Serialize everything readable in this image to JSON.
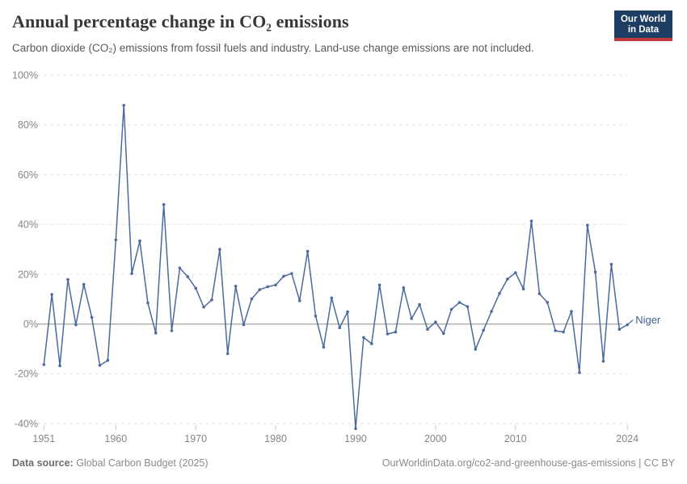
{
  "header": {
    "title": "Annual percentage change in CO₂ emissions",
    "subtitle": "Carbon dioxide (CO₂) emissions from fossil fuels and industry. Land-use change emissions are not included.",
    "logo": {
      "line1": "Our World",
      "line2": "in Data"
    }
  },
  "chart_data": {
    "type": "line",
    "entity": "Niger",
    "unit": "%",
    "points": [
      [
        1951,
        -16.3
      ],
      [
        1952,
        11.9
      ],
      [
        1953,
        -16.8
      ],
      [
        1954,
        17.9
      ],
      [
        1955,
        -0.3
      ],
      [
        1956,
        15.9
      ],
      [
        1957,
        2.7
      ],
      [
        1958,
        -16.6
      ],
      [
        1959,
        -14.6
      ],
      [
        1960,
        33.8
      ],
      [
        1961,
        87.9
      ],
      [
        1962,
        20.3
      ],
      [
        1963,
        33.4
      ],
      [
        1964,
        8.5
      ],
      [
        1965,
        -3.6
      ],
      [
        1966,
        48.0
      ],
      [
        1967,
        -2.7
      ],
      [
        1968,
        22.5
      ],
      [
        1969,
        19.0
      ],
      [
        1970,
        14.4
      ],
      [
        1971,
        6.8
      ],
      [
        1972,
        9.7
      ],
      [
        1973,
        30.0
      ],
      [
        1974,
        -11.9
      ],
      [
        1975,
        15.2
      ],
      [
        1976,
        -0.3
      ],
      [
        1977,
        10.1
      ],
      [
        1978,
        13.8
      ],
      [
        1979,
        15.0
      ],
      [
        1980,
        15.7
      ],
      [
        1981,
        19.2
      ],
      [
        1982,
        20.3
      ],
      [
        1983,
        9.4
      ],
      [
        1984,
        29.2
      ],
      [
        1985,
        3.2
      ],
      [
        1986,
        -9.3
      ],
      [
        1987,
        10.5
      ],
      [
        1988,
        -1.5
      ],
      [
        1989,
        4.9
      ],
      [
        1990,
        -42.0
      ],
      [
        1991,
        -5.4
      ],
      [
        1992,
        -7.9
      ],
      [
        1993,
        15.7
      ],
      [
        1994,
        -4.0
      ],
      [
        1995,
        -3.2
      ],
      [
        1996,
        14.6
      ],
      [
        1997,
        2.2
      ],
      [
        1998,
        7.8
      ],
      [
        1999,
        -2.1
      ],
      [
        2000,
        0.8
      ],
      [
        2001,
        -3.8
      ],
      [
        2002,
        5.9
      ],
      [
        2003,
        8.7
      ],
      [
        2004,
        7.0
      ],
      [
        2005,
        -10.1
      ],
      [
        2006,
        -2.5
      ],
      [
        2007,
        5.1
      ],
      [
        2008,
        12.3
      ],
      [
        2009,
        18.1
      ],
      [
        2010,
        20.6
      ],
      [
        2011,
        14.1
      ],
      [
        2012,
        41.4
      ],
      [
        2013,
        12.2
      ],
      [
        2014,
        8.7
      ],
      [
        2015,
        -2.7
      ],
      [
        2016,
        -3.2
      ],
      [
        2017,
        5.1
      ],
      [
        2018,
        -19.5
      ],
      [
        2019,
        39.7
      ],
      [
        2020,
        20.9
      ],
      [
        2021,
        -14.9
      ],
      [
        2022,
        24.0
      ],
      [
        2023,
        -2.1
      ],
      [
        2024,
        -0.3
      ]
    ],
    "yticks": [
      100,
      80,
      60,
      40,
      20,
      0,
      -20,
      -40
    ],
    "ytick_labels": [
      "100%",
      "80%",
      "60%",
      "40%",
      "20%",
      "0%",
      "-20%",
      "-40%"
    ],
    "xticks": [
      1951,
      1960,
      1970,
      1980,
      1990,
      2000,
      2010,
      2024
    ],
    "xtick_labels": [
      "1951",
      "1960",
      "1970",
      "1980",
      "1990",
      "2000",
      "2010",
      "2024"
    ],
    "xlim": [
      1951,
      2024
    ],
    "ylim": [
      -44,
      103
    ],
    "grid": "dashed horizontal, solid zero line",
    "legend_position": "end-of-line label",
    "colors": {
      "line": "#4c6a9c",
      "entity_label": "#44618f",
      "gridline": "#e0e0e0",
      "zero_line": "#ababab",
      "axis_text": "#858585",
      "logo_bg": "#1d3d63",
      "logo_bar": "#c5383c"
    }
  },
  "footer": {
    "source_label": "Data source:",
    "source_value": " Global Carbon Budget (2025)",
    "right_text": "OurWorldinData.org/co2-and-greenhouse-gas-emissions | CC BY"
  }
}
